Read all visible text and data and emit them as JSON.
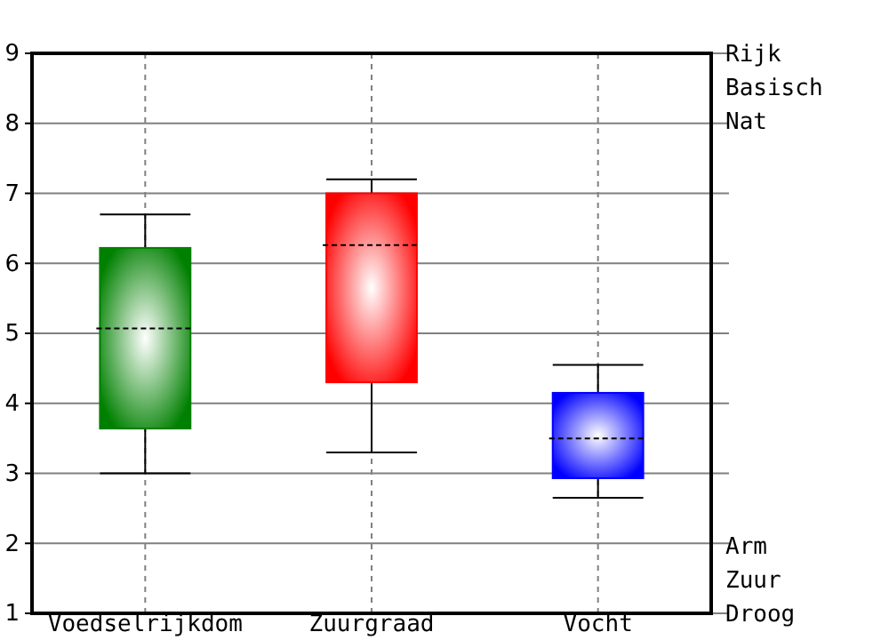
{
  "chart_data": {
    "type": "box",
    "categories": [
      "Voedselrijkdom",
      "Zuurgraad",
      "Vocht"
    ],
    "boxes": [
      {
        "low": 3.0,
        "q1": 3.64,
        "median": 5.07,
        "q3": 6.22,
        "high": 6.7
      },
      {
        "low": 3.3,
        "q1": 4.3,
        "median": 6.26,
        "q3": 7.0,
        "high": 7.2
      },
      {
        "low": 2.65,
        "q1": 2.93,
        "median": 3.5,
        "q3": 4.15,
        "high": 4.55
      }
    ],
    "colors": [
      "#008000",
      "#ff0000",
      "#0000ff"
    ],
    "ylim": [
      1,
      9
    ],
    "yticks": [
      1,
      2,
      3,
      4,
      5,
      6,
      7,
      8,
      9
    ],
    "grid": true,
    "annotations": [
      "Rijk",
      "Basisch",
      "Nat",
      "Arm",
      "Zuur",
      "Droog"
    ]
  }
}
